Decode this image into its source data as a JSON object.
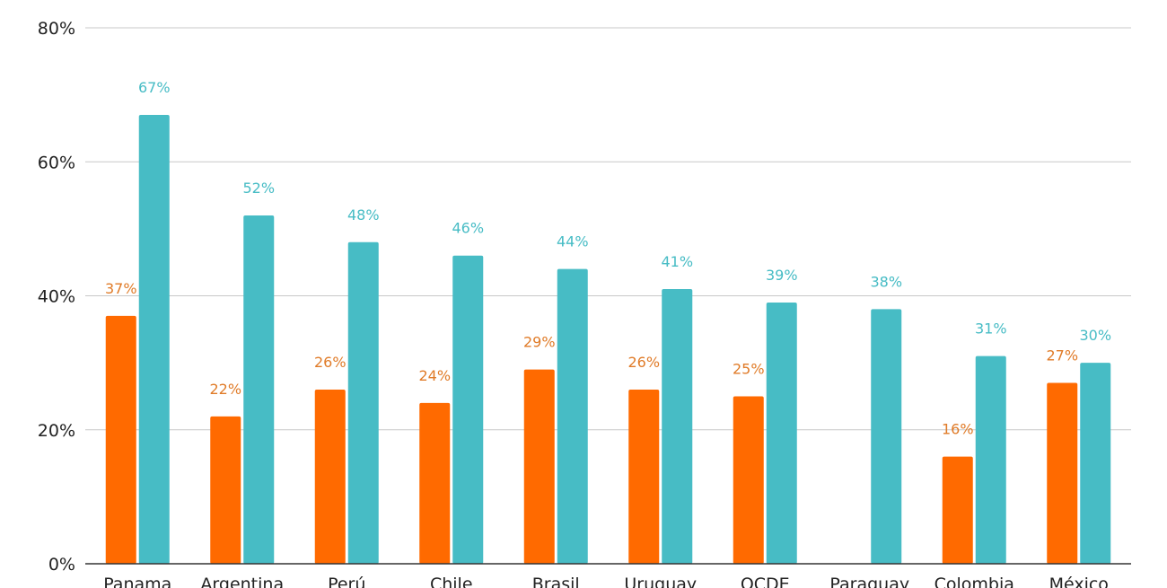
{
  "chart_data": {
    "type": "bar",
    "categories": [
      "Panama",
      "Argentina",
      "Perú",
      "Chile",
      "Brasil",
      "Uruguay",
      "OCDE",
      "Paraguay",
      "Colombia",
      "México"
    ],
    "series": [
      {
        "color": "#ff6a00",
        "values": [
          37,
          22,
          26,
          24,
          29,
          26,
          25,
          null,
          16,
          27
        ],
        "labels": [
          "37%",
          "22%",
          "26%",
          "24%",
          "29%",
          "26%",
          "25%",
          "",
          "16%",
          "27%"
        ]
      },
      {
        "color": "#47bcc5",
        "values": [
          67,
          52,
          48,
          46,
          44,
          41,
          39,
          38,
          31,
          30
        ],
        "labels": [
          "67%",
          "52%",
          "48%",
          "46%",
          "44%",
          "41%",
          "39%",
          "38%",
          "31%",
          "30%"
        ]
      }
    ],
    "ylim": [
      0,
      80
    ],
    "yticks": [
      0,
      20,
      40,
      60,
      80
    ],
    "ytick_labels": [
      "0%",
      "20%",
      "40%",
      "60%",
      "80%"
    ],
    "grid": true,
    "label_colors": [
      "#e07b28",
      "#47bcc5"
    ]
  }
}
